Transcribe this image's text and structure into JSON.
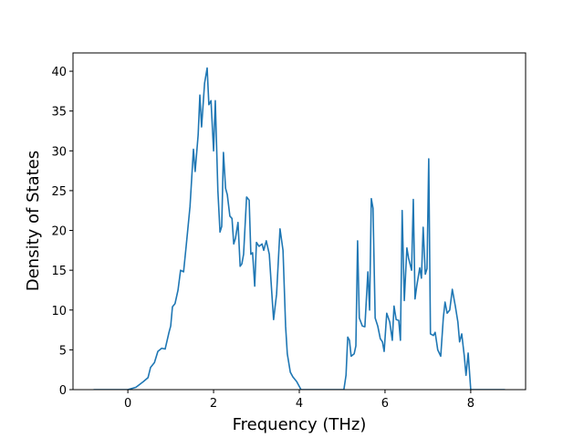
{
  "chart_data": {
    "type": "line",
    "xlabel": "Frequency (THz)",
    "ylabel": "Density of States",
    "x": [
      -0.8,
      0,
      0.19,
      0.36,
      0.47,
      0.53,
      0.62,
      0.7,
      0.79,
      0.87,
      0.96,
      1.0,
      1.04,
      1.1,
      1.17,
      1.23,
      1.3,
      1.36,
      1.45,
      1.53,
      1.57,
      1.64,
      1.68,
      1.72,
      1.79,
      1.85,
      1.89,
      1.94,
      2.0,
      2.04,
      2.1,
      2.15,
      2.19,
      2.23,
      2.28,
      2.32,
      2.38,
      2.43,
      2.47,
      2.51,
      2.57,
      2.62,
      2.66,
      2.7,
      2.77,
      2.83,
      2.87,
      2.91,
      2.96,
      3.0,
      3.06,
      3.13,
      3.17,
      3.23,
      3.3,
      3.36,
      3.4,
      3.47,
      3.55,
      3.62,
      3.68,
      3.72,
      3.79,
      3.85,
      3.94,
      4.04,
      5.04,
      5.09,
      5.13,
      5.17,
      5.21,
      5.28,
      5.32,
      5.36,
      5.4,
      5.47,
      5.53,
      5.6,
      5.64,
      5.68,
      5.72,
      5.77,
      5.83,
      5.89,
      5.94,
      5.98,
      6.04,
      6.11,
      6.17,
      6.21,
      6.26,
      6.32,
      6.36,
      6.4,
      6.45,
      6.51,
      6.55,
      6.62,
      6.66,
      6.7,
      6.74,
      6.81,
      6.85,
      6.89,
      6.94,
      6.98,
      7.02,
      7.06,
      7.13,
      7.17,
      7.23,
      7.3,
      7.36,
      7.4,
      7.45,
      7.51,
      7.57,
      7.64,
      7.7,
      7.74,
      7.79,
      7.85,
      7.89,
      7.94,
      8.0,
      8.8
    ],
    "values": [
      0,
      0,
      0.3,
      1.0,
      1.5,
      2.8,
      3.4,
      4.8,
      5.2,
      5.1,
      7.2,
      8.0,
      10.4,
      10.8,
      12.5,
      15.0,
      14.8,
      18,
      23,
      30.2,
      27.4,
      32,
      37,
      33,
      38.5,
      40.4,
      35.8,
      36.3,
      30,
      36.3,
      25,
      19.8,
      20.5,
      29.8,
      25.3,
      24.5,
      21.8,
      21.5,
      18.3,
      19.0,
      21.0,
      15.5,
      15.8,
      17.0,
      24.2,
      23.8,
      17.0,
      17.2,
      13.0,
      18.5,
      18.0,
      18.3,
      17.5,
      18.7,
      17.0,
      12.0,
      8.8,
      12,
      20.2,
      17.5,
      8,
      4.5,
      2.2,
      1.6,
      1.0,
      0,
      0,
      1.8,
      6.6,
      6.2,
      4.2,
      4.5,
      5.5,
      18.7,
      9,
      8,
      7.9,
      14.8,
      10,
      24,
      22.8,
      9,
      8,
      6.4,
      6.0,
      4.8,
      9.6,
      8.5,
      6.2,
      10.5,
      8.8,
      8.7,
      6.2,
      22.5,
      11.2,
      17.8,
      16.5,
      15.0,
      23.9,
      11.4,
      13,
      15.3,
      14,
      20.4,
      14.5,
      15.2,
      29,
      7,
      6.8,
      7.2,
      5.0,
      4.2,
      9,
      11,
      9.6,
      10,
      12.6,
      10.5,
      8.5,
      6,
      7,
      4.2,
      1.8,
      4.6,
      0,
      0
    ],
    "color": "#1f77b4",
    "xlim": [
      -1.28,
      9.28
    ],
    "xticks": [
      0,
      2,
      4,
      6,
      8
    ],
    "ylim": [
      0,
      42.3
    ],
    "yticks": [
      0,
      5,
      10,
      15,
      20,
      25,
      30,
      35,
      40
    ]
  }
}
